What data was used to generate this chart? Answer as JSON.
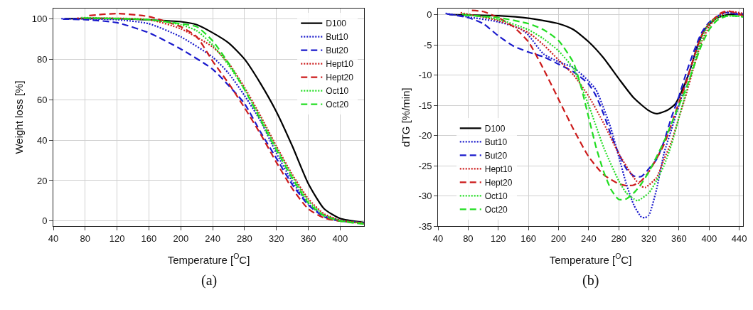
{
  "chart_data": [
    {
      "type": "line",
      "xlabel": "Temperature [$^{O}$C]",
      "ylabel": "Weight loss [%]",
      "annotations": [
        "(a)"
      ],
      "xlim": [
        40,
        430
      ],
      "xticks": [
        40,
        80,
        120,
        160,
        200,
        240,
        280,
        320,
        360,
        400
      ],
      "ylim": [
        -2.5,
        105
      ],
      "yticks": [
        0,
        20,
        40,
        60,
        80,
        100
      ],
      "grid": true,
      "legend": "top right",
      "series": [
        {
          "name": "D100",
          "color": "#000000",
          "line_style": "solid",
          "x": [
            55,
            120,
            200,
            220,
            240,
            260,
            280,
            300,
            320,
            340,
            360,
            380,
            400,
            430
          ],
          "values": [
            100,
            100,
            98.5,
            97,
            93,
            88,
            80,
            68,
            54,
            37,
            18.5,
            6,
            1.3,
            -0.7
          ]
        },
        {
          "name": "But10",
          "color": "#1a1acc",
          "line_style": "dotted",
          "x": [
            50,
            120,
            160,
            200,
            240,
            260,
            280,
            300,
            320,
            340,
            360,
            380,
            400,
            430
          ],
          "values": [
            100,
            99.5,
            97.5,
            91,
            81,
            73,
            62,
            49.5,
            33.5,
            19.5,
            8.5,
            2.5,
            0.5,
            -1
          ]
        },
        {
          "name": "But20",
          "color": "#1a1acc",
          "line_style": "dashed",
          "x": [
            52,
            80,
            120,
            160,
            200,
            240,
            260,
            280,
            300,
            320,
            340,
            360,
            380,
            400,
            430
          ],
          "values": [
            99.8,
            99.5,
            98,
            93,
            85,
            75,
            67,
            58,
            44,
            31,
            18,
            8,
            2,
            0,
            -0.8
          ]
        },
        {
          "name": "Hept10",
          "color": "#cc1a1a",
          "line_style": "dotted",
          "x": [
            70,
            160,
            200,
            240,
            260,
            280,
            300,
            320,
            340,
            360,
            380,
            400,
            430
          ],
          "values": [
            100.2,
            99.5,
            95,
            86,
            78,
            66,
            52,
            37,
            23,
            11,
            3.5,
            0.5,
            -1.3
          ]
        },
        {
          "name": "Hept20",
          "color": "#cc1a1a",
          "line_style": "dashed",
          "x": [
            85,
            120,
            160,
            200,
            220,
            240,
            260,
            280,
            300,
            320,
            340,
            360,
            380,
            400,
            430
          ],
          "values": [
            101.5,
            102.5,
            101,
            96,
            91,
            79,
            68,
            56,
            43,
            29,
            16,
            6,
            1.5,
            0,
            -0.9
          ]
        },
        {
          "name": "Oct10",
          "color": "#22dd22",
          "line_style": "dotted",
          "x": [
            75,
            160,
            200,
            220,
            240,
            260,
            280,
            300,
            320,
            340,
            360,
            380,
            400,
            430
          ],
          "values": [
            100.5,
            99.5,
            97,
            94,
            87,
            77,
            65,
            51,
            36,
            22,
            10,
            3,
            0.3,
            -1
          ]
        },
        {
          "name": "Oct20",
          "color": "#22dd22",
          "line_style": "dashed",
          "x": [
            78,
            160,
            200,
            220,
            240,
            260,
            280,
            300,
            320,
            340,
            360,
            380,
            400,
            430
          ],
          "values": [
            100.3,
            99.5,
            97.5,
            96,
            89,
            78,
            65,
            50,
            35,
            21,
            9,
            2.5,
            0,
            -1.5
          ]
        }
      ]
    },
    {
      "type": "line",
      "xlabel": "Temperature [$^{O}$C]",
      "ylabel": "dTG [%/min]",
      "annotations": [
        "(b)"
      ],
      "xlim": [
        40,
        445
      ],
      "xticks": [
        40,
        80,
        120,
        160,
        200,
        240,
        280,
        320,
        360,
        400,
        440
      ],
      "ylim": [
        -35,
        1
      ],
      "yticks": [
        -35,
        -30,
        -25,
        -20,
        -15,
        -10,
        -5,
        0
      ],
      "grid": true,
      "legend": "bottom left",
      "series": [
        {
          "name": "D100",
          "color": "#000000",
          "line_style": "solid",
          "x": [
            55,
            120,
            160,
            200,
            220,
            240,
            260,
            280,
            300,
            320,
            330,
            345,
            355,
            365,
            375,
            385,
            395,
            410,
            425,
            445
          ],
          "values": [
            0,
            -0.2,
            -0.6,
            -1.5,
            -2.5,
            -4.5,
            -7.2,
            -10.6,
            -13.8,
            -15.9,
            -16.4,
            -15.8,
            -14.8,
            -12.3,
            -9,
            -5,
            -2.3,
            -0.6,
            0,
            0
          ]
        },
        {
          "name": "But10",
          "color": "#1a1acc",
          "line_style": "dotted",
          "x": [
            50,
            80,
            120,
            150,
            160,
            180,
            200,
            220,
            240,
            250,
            260,
            270,
            280,
            290,
            300,
            310,
            315,
            320,
            330,
            340,
            350,
            360,
            370,
            380,
            390,
            400,
            420,
            430,
            445
          ],
          "values": [
            0.2,
            -0.4,
            -1.2,
            -2.4,
            -3.4,
            -6.5,
            -7.8,
            -8.8,
            -11,
            -12.5,
            -15.5,
            -19,
            -23.5,
            -28,
            -31.5,
            -33.5,
            -33.6,
            -33.2,
            -29,
            -23,
            -19,
            -15,
            -11,
            -7,
            -3.5,
            -1.5,
            0.3,
            0.3,
            0.1
          ]
        },
        {
          "name": "But20",
          "color": "#1a1acc",
          "line_style": "dashed",
          "x": [
            52,
            80,
            100,
            120,
            140,
            160,
            180,
            200,
            220,
            240,
            250,
            260,
            270,
            280,
            290,
            300,
            310,
            320,
            330,
            340,
            350,
            360,
            370,
            380,
            390,
            400,
            420,
            445
          ],
          "values": [
            0.1,
            -0.5,
            -1.5,
            -3.5,
            -5.2,
            -6.2,
            -7,
            -8.2,
            -9.5,
            -11.5,
            -13.5,
            -16.5,
            -20,
            -23,
            -25.5,
            -26.7,
            -26.8,
            -25.5,
            -24,
            -21,
            -17,
            -13.5,
            -9.5,
            -6,
            -3,
            -1.3,
            0.3,
            -0.1
          ]
        },
        {
          "name": "Hept10",
          "color": "#cc1a1a",
          "line_style": "dotted",
          "x": [
            70,
            120,
            160,
            180,
            200,
            220,
            240,
            260,
            280,
            300,
            310,
            315,
            330,
            340,
            350,
            360,
            370,
            380,
            390,
            400,
            410,
            425,
            445
          ],
          "values": [
            0.3,
            -1,
            -3,
            -5,
            -7.5,
            -10,
            -13.5,
            -18,
            -23,
            -27,
            -28.4,
            -28.6,
            -27,
            -24,
            -21,
            -17,
            -13,
            -8.5,
            -4.5,
            -2,
            -0.5,
            0.5,
            0.2
          ]
        },
        {
          "name": "Hept20",
          "color": "#cc1a1a",
          "line_style": "dashed",
          "x": [
            85,
            100,
            120,
            140,
            160,
            180,
            200,
            220,
            240,
            260,
            280,
            290,
            300,
            310,
            320,
            340,
            360,
            370,
            380,
            390,
            400,
            415,
            425,
            445
          ],
          "values": [
            0.7,
            0.5,
            -0.5,
            -2,
            -4.5,
            -9,
            -14,
            -19,
            -23.5,
            -26.5,
            -28,
            -28.3,
            -28.2,
            -27.5,
            -26,
            -21.5,
            -14.5,
            -11,
            -7,
            -3.5,
            -1.5,
            0.2,
            0.6,
            -0.2
          ]
        },
        {
          "name": "Oct10",
          "color": "#22dd22",
          "line_style": "dotted",
          "x": [
            72,
            120,
            160,
            180,
            200,
            220,
            240,
            260,
            280,
            290,
            300,
            305,
            320,
            330,
            340,
            350,
            360,
            370,
            380,
            390,
            400,
            415,
            445
          ],
          "values": [
            0.1,
            -0.8,
            -2.5,
            -4,
            -6,
            -9,
            -15,
            -22,
            -27.5,
            -29.5,
            -30.5,
            -30.8,
            -29.5,
            -27.5,
            -25,
            -21.5,
            -17,
            -12.5,
            -8,
            -4,
            -1.5,
            -0.3,
            -0.3
          ]
        },
        {
          "name": "Oct20",
          "color": "#22dd22",
          "line_style": "dashed",
          "x": [
            74,
            120,
            160,
            180,
            200,
            220,
            230,
            240,
            250,
            260,
            270,
            280,
            290,
            300,
            310,
            320,
            340,
            360,
            370,
            380,
            390,
            400,
            410,
            425,
            445
          ],
          "values": [
            -0.1,
            -0.5,
            -1.5,
            -2.5,
            -4.3,
            -8,
            -12,
            -17,
            -22,
            -26,
            -29,
            -30.6,
            -30.5,
            -29.5,
            -28,
            -26,
            -21,
            -15,
            -12,
            -8.5,
            -5,
            -2.5,
            -1,
            -0.2,
            -0.4
          ]
        }
      ]
    }
  ]
}
